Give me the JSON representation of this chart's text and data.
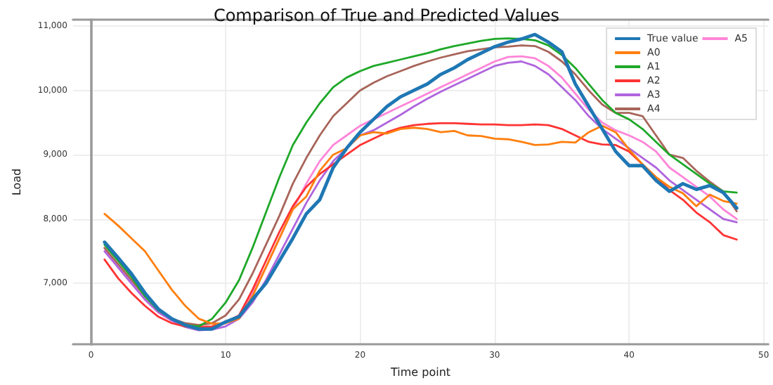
{
  "chart_data": {
    "type": "line",
    "title": "Comparison of True and Predicted Values",
    "xlabel": "Time point",
    "ylabel": "Load",
    "x": [
      1,
      2,
      3,
      4,
      5,
      6,
      7,
      8,
      9,
      10,
      11,
      12,
      13,
      14,
      15,
      16,
      17,
      18,
      19,
      20,
      21,
      22,
      23,
      24,
      25,
      26,
      27,
      28,
      29,
      30,
      31,
      32,
      33,
      34,
      35,
      36,
      37,
      38,
      39,
      40,
      41,
      42,
      43,
      44,
      45,
      46,
      47,
      48
    ],
    "xlim": [
      -1.35,
      50.35
    ],
    "xticks": [
      0,
      10,
      20,
      30,
      40,
      50
    ],
    "ylim": [
      6050,
      11100
    ],
    "yticks": [
      {
        "value": 7000,
        "label": "7,000"
      },
      {
        "value": 8000,
        "label": "8,000"
      },
      {
        "value": 9000,
        "label": "9,000"
      },
      {
        "value": 10000,
        "label": "10,000"
      },
      {
        "value": 11000,
        "label": "11,000"
      }
    ],
    "grid": true,
    "legend": "top right",
    "marker": "none",
    "line_style": "solid",
    "series": [
      {
        "name": "True value",
        "color": "#1f77b4",
        "values": [
          7640,
          7400,
          7150,
          6850,
          6600,
          6450,
          6350,
          6290,
          6290,
          6400,
          6480,
          6750,
          7000,
          7350,
          7700,
          8080,
          8300,
          8800,
          9100,
          9350,
          9550,
          9750,
          9900,
          10000,
          10100,
          10250,
          10350,
          10480,
          10580,
          10680,
          10750,
          10800,
          10870,
          10750,
          10600,
          10100,
          9750,
          9400,
          9050,
          8830,
          8830,
          8600,
          8430,
          8550,
          8460,
          8520,
          8410,
          8170
        ]
      },
      {
        "name": "A0",
        "color": "#ff7f0e",
        "values": [
          8080,
          7900,
          7700,
          7500,
          7200,
          6900,
          6650,
          6450,
          6370,
          6380,
          6450,
          6800,
          7250,
          7700,
          8150,
          8350,
          8750,
          9000,
          9100,
          9300,
          9350,
          9330,
          9400,
          9420,
          9400,
          9350,
          9370,
          9300,
          9290,
          9250,
          9240,
          9200,
          9150,
          9160,
          9200,
          9190,
          9350,
          9450,
          9350,
          9080,
          8850,
          8650,
          8500,
          8400,
          8200,
          8380,
          8280,
          8240
        ]
      },
      {
        "name": "A1",
        "color": "#1ea829",
        "values": [
          7600,
          7350,
          7100,
          6800,
          6580,
          6450,
          6350,
          6330,
          6450,
          6700,
          7050,
          7550,
          8100,
          8650,
          9150,
          9500,
          9800,
          10050,
          10200,
          10300,
          10380,
          10430,
          10480,
          10530,
          10580,
          10640,
          10690,
          10730,
          10770,
          10800,
          10810,
          10800,
          10780,
          10700,
          10550,
          10350,
          10100,
          9850,
          9650,
          9550,
          9400,
          9200,
          9000,
          8850,
          8700,
          8550,
          8430,
          8410
        ]
      },
      {
        "name": "A2",
        "color": "#ff3333",
        "values": [
          7370,
          7080,
          6850,
          6650,
          6480,
          6380,
          6330,
          6320,
          6330,
          6400,
          6500,
          6900,
          7350,
          7800,
          8200,
          8500,
          8700,
          8850,
          9000,
          9150,
          9250,
          9350,
          9420,
          9460,
          9480,
          9490,
          9490,
          9480,
          9470,
          9470,
          9460,
          9460,
          9470,
          9460,
          9400,
          9300,
          9200,
          9160,
          9150,
          9050,
          8850,
          8650,
          8450,
          8300,
          8100,
          7950,
          7750,
          7680
        ]
      },
      {
        "name": "A3",
        "color": "#b065dd",
        "values": [
          7500,
          7250,
          7000,
          6750,
          6550,
          6420,
          6320,
          6270,
          6280,
          6330,
          6450,
          6700,
          7050,
          7450,
          7850,
          8250,
          8600,
          8900,
          9100,
          9300,
          9380,
          9500,
          9620,
          9750,
          9870,
          9980,
          10080,
          10180,
          10280,
          10380,
          10430,
          10450,
          10380,
          10250,
          10050,
          9850,
          9600,
          9400,
          9250,
          9100,
          8950,
          8800,
          8600,
          8450,
          8300,
          8150,
          8000,
          7950
        ]
      },
      {
        "name": "A4",
        "color": "#a8655a",
        "values": [
          7550,
          7300,
          7050,
          6800,
          6600,
          6450,
          6380,
          6350,
          6380,
          6500,
          6750,
          7150,
          7600,
          8050,
          8550,
          8950,
          9300,
          9600,
          9800,
          10000,
          10120,
          10220,
          10300,
          10380,
          10450,
          10510,
          10560,
          10610,
          10640,
          10670,
          10680,
          10700,
          10690,
          10600,
          10450,
          10250,
          10000,
          9780,
          9650,
          9650,
          9600,
          9300,
          9000,
          8950,
          8750,
          8580,
          8430,
          8120
        ]
      },
      {
        "name": "A5",
        "color": "#ff85d8",
        "values": [
          7550,
          7250,
          7000,
          6750,
          6550,
          6420,
          6330,
          6300,
          6320,
          6380,
          6500,
          6850,
          7250,
          7700,
          8150,
          8550,
          8900,
          9150,
          9300,
          9450,
          9550,
          9650,
          9750,
          9850,
          9950,
          10050,
          10150,
          10250,
          10350,
          10450,
          10520,
          10530,
          10500,
          10380,
          10200,
          9950,
          9700,
          9500,
          9380,
          9300,
          9200,
          9050,
          8800,
          8650,
          8500,
          8350,
          8150,
          8000
        ]
      }
    ]
  }
}
